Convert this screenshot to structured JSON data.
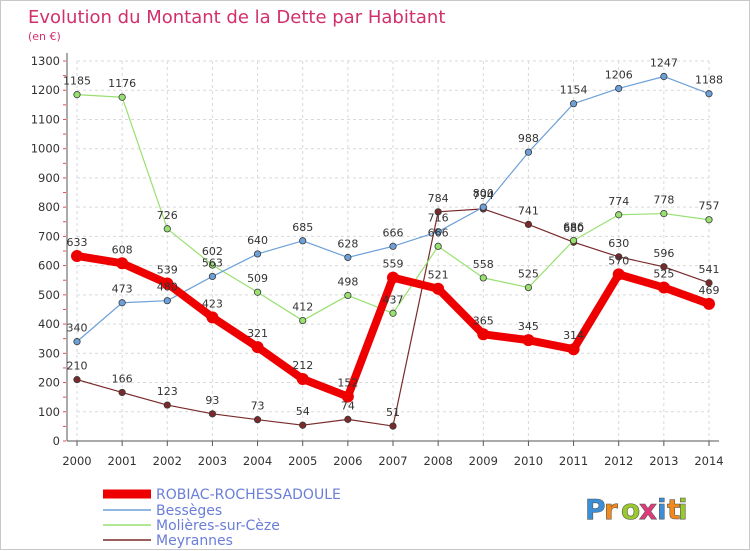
{
  "chart_data": {
    "type": "line",
    "title": "Evolution du Montant de la Dette par Habitant",
    "subtitle": "(en €)",
    "xlabel": "",
    "ylabel": "",
    "ylim": [
      0,
      1300
    ],
    "yticks": [
      0,
      100,
      200,
      300,
      400,
      500,
      600,
      700,
      800,
      900,
      1000,
      1100,
      1200,
      1300
    ],
    "grid": true,
    "legend_position": "bottom-left",
    "categories": [
      "2000",
      "2001",
      "2002",
      "2003",
      "2004",
      "2005",
      "2006",
      "2007",
      "2008",
      "2009",
      "2010",
      "2011",
      "2012",
      "2013",
      "2014"
    ],
    "series": [
      {
        "name": "ROBIAC-ROCHESSADOULE",
        "color": "#ee0000",
        "values": [
          633,
          608,
          539,
          423,
          321,
          212,
          152,
          559,
          521,
          365,
          345,
          314,
          570,
          525,
          469
        ]
      },
      {
        "name": "Bessèges",
        "color": "#6da0d8",
        "values": [
          340,
          473,
          480,
          563,
          640,
          685,
          628,
          666,
          716,
          800,
          988,
          1154,
          1206,
          1247,
          1188
        ]
      },
      {
        "name": "Molières-sur-Cèze",
        "color": "#98e070",
        "values": [
          1185,
          1176,
          726,
          602,
          509,
          412,
          498,
          437,
          666,
          558,
          525,
          686,
          774,
          778,
          757
        ]
      },
      {
        "name": "Meyrannes",
        "color": "#7a2a2a",
        "values": [
          210,
          166,
          123,
          93,
          73,
          54,
          74,
          51,
          784,
          794,
          741,
          680,
          630,
          596,
          541
        ]
      }
    ]
  },
  "logo": {
    "text": "Proxiti",
    "letters": [
      "P",
      "r",
      "o",
      "x",
      "i",
      "t",
      "i"
    ]
  }
}
